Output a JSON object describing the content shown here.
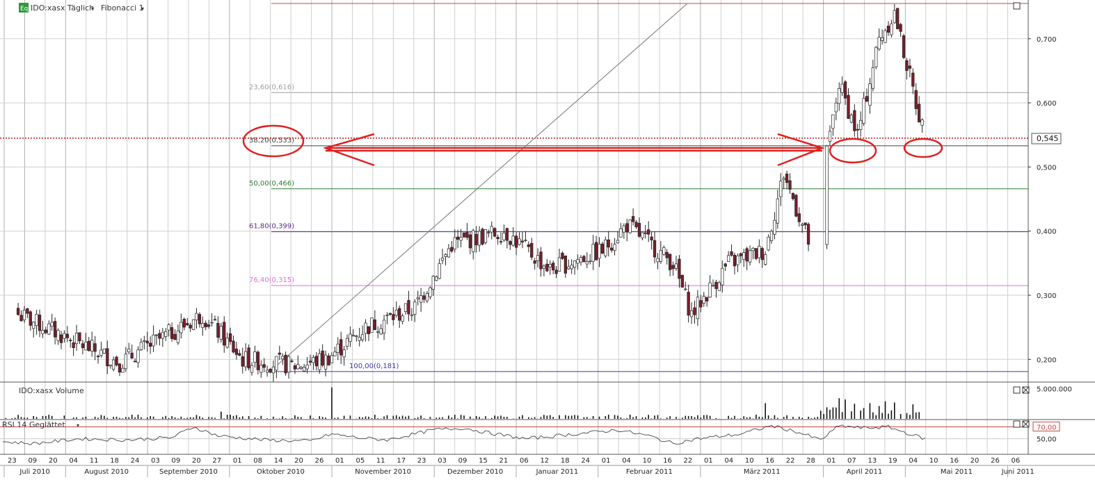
{
  "header": {
    "badge": "Eq",
    "symbol": "IDO:xasx Täglich",
    "fib_menu": "Fibonacci 1",
    "current_price": "0,545"
  },
  "colors": {
    "candle_up": "#ffffff",
    "candle_down": "#7a1f2b",
    "grid": "#cfcfcf",
    "fib_top": "#c84444",
    "fib_382": "#404040",
    "fib_50": "#2e7d32",
    "fib_618": "#5b2a86",
    "fib_764": "#e36be0",
    "fib_100": "#3a3aa0",
    "annotation": "#e02020"
  },
  "chart_data": [
    {
      "type": "candlestick",
      "title": "IDO:xasx Täglich",
      "ylim": [
        0.17,
        0.755
      ],
      "y_ticks": [
        "0,200",
        "0,300",
        "0,400",
        "0,500",
        "0,600",
        "0,700"
      ],
      "y_tick_values": [
        0.2,
        0.3,
        0.4,
        0.5,
        0.6,
        0.7
      ],
      "x_day_labels": [
        "23",
        "09",
        "20",
        "04",
        "11",
        "18",
        "24",
        "03",
        "09",
        "20",
        "27",
        "01",
        "08",
        "14",
        "20",
        "26",
        "01",
        "05",
        "11",
        "17",
        "23",
        "03",
        "09",
        "15",
        "21",
        "06",
        "12",
        "18",
        "24",
        "01",
        "04",
        "10",
        "16",
        "22",
        "01",
        "04",
        "10",
        "16",
        "22",
        "28",
        "01",
        "07",
        "13",
        "19",
        "04",
        "10",
        "16",
        "20",
        "26",
        "06"
      ],
      "x_month_labels": [
        "Juli 2010",
        "August 2010",
        "September 2010",
        "Oktober 2010",
        "November 2010",
        "Dezember 2010",
        "Januar 2011",
        "Februar 2011",
        "März 2011",
        "April 2011",
        "Mai 2011",
        "Juni 2011"
      ],
      "fibonacci": [
        {
          "label": "",
          "value": 0.755,
          "color": "#c84444"
        },
        {
          "label": "23,60(0,616)",
          "value": 0.616,
          "color": "#9e9e9e"
        },
        {
          "label": "38,20(0,533)",
          "value": 0.533,
          "color": "#404040"
        },
        {
          "label": "50,00(0,466)",
          "value": 0.466,
          "color": "#2e7d32"
        },
        {
          "label": "61,80(0,399)",
          "value": 0.399,
          "color": "#5b2a86"
        },
        {
          "label": "76,40(0,315)",
          "value": 0.315,
          "color": "#e36be0"
        },
        {
          "label": "100,00(0,181)",
          "value": 0.181,
          "color": "#3a3aa0"
        }
      ],
      "price_line": 0.545,
      "segments": [
        {
          "from": 5,
          "to": 38,
          "start": 0.27,
          "end": 0.195
        },
        {
          "from": 38,
          "to": 65,
          "start": 0.195,
          "end": 0.27
        },
        {
          "from": 65,
          "to": 78,
          "start": 0.27,
          "end": 0.2
        },
        {
          "from": 78,
          "to": 95,
          "start": 0.2,
          "end": 0.19
        },
        {
          "from": 95,
          "to": 105,
          "start": 0.19,
          "end": 0.2
        },
        {
          "from": 105,
          "to": 118,
          "start": 0.2,
          "end": 0.25
        },
        {
          "from": 118,
          "to": 134,
          "start": 0.25,
          "end": 0.28
        },
        {
          "from": 134,
          "to": 146,
          "start": 0.28,
          "end": 0.38
        },
        {
          "from": 146,
          "to": 163,
          "start": 0.38,
          "end": 0.4
        },
        {
          "from": 163,
          "to": 178,
          "start": 0.4,
          "end": 0.34
        },
        {
          "from": 178,
          "to": 195,
          "start": 0.34,
          "end": 0.37
        },
        {
          "from": 195,
          "to": 203,
          "start": 0.37,
          "end": 0.41
        },
        {
          "from": 203,
          "to": 218,
          "start": 0.41,
          "end": 0.35
        },
        {
          "from": 218,
          "to": 224,
          "start": 0.35,
          "end": 0.27
        },
        {
          "from": 224,
          "to": 236,
          "start": 0.27,
          "end": 0.35
        },
        {
          "from": 236,
          "to": 248,
          "start": 0.35,
          "end": 0.37
        },
        {
          "from": 248,
          "to": 254,
          "start": 0.37,
          "end": 0.49
        },
        {
          "from": 254,
          "to": 263,
          "start": 0.49,
          "end": 0.37
        },
        {
          "from": 268,
          "to": 272,
          "start": 0.52,
          "end": 0.63
        },
        {
          "from": 272,
          "to": 278,
          "start": 0.63,
          "end": 0.55
        },
        {
          "from": 278,
          "to": 285,
          "start": 0.55,
          "end": 0.7
        },
        {
          "from": 285,
          "to": 290,
          "start": 0.7,
          "end": 0.74
        },
        {
          "from": 290,
          "to": 297,
          "start": 0.74,
          "end": 0.6
        },
        {
          "from": 297,
          "to": 300,
          "start": 0.6,
          "end": 0.545
        }
      ]
    },
    {
      "type": "bar",
      "title": "IDO:xasx Volume",
      "y_ticks": [
        "5.000.000"
      ],
      "y_tick_values": [
        5000000
      ],
      "ylim": [
        0,
        5500000
      ],
      "spikes": [
        {
          "day": 107,
          "value": 5200000
        },
        {
          "day": 71,
          "value": 1200000
        },
        {
          "day": 248,
          "value": 2600000
        },
        {
          "day": 272,
          "value": 3400000
        },
        {
          "day": 274,
          "value": 3200000
        },
        {
          "day": 277,
          "value": 2500000
        },
        {
          "day": 282,
          "value": 2600000
        },
        {
          "day": 287,
          "value": 2900000
        },
        {
          "day": 290,
          "value": 2700000
        },
        {
          "day": 296,
          "value": 2400000
        }
      ]
    },
    {
      "type": "line",
      "title": "RSI 14 Geglättet",
      "y_ticks": [
        "50,00",
        "70,00"
      ],
      "y_tick_values": [
        50,
        70
      ],
      "ylim": [
        25,
        80
      ],
      "knots": [
        [
          0,
          45
        ],
        [
          10,
          42
        ],
        [
          25,
          50
        ],
        [
          40,
          48
        ],
        [
          55,
          52
        ],
        [
          62,
          70
        ],
        [
          70,
          55
        ],
        [
          85,
          48
        ],
        [
          100,
          46
        ],
        [
          107,
          58
        ],
        [
          115,
          52
        ],
        [
          125,
          48
        ],
        [
          140,
          65
        ],
        [
          150,
          68
        ],
        [
          158,
          60
        ],
        [
          170,
          50
        ],
        [
          180,
          55
        ],
        [
          190,
          60
        ],
        [
          200,
          65
        ],
        [
          210,
          55
        ],
        [
          218,
          42
        ],
        [
          226,
          50
        ],
        [
          240,
          58
        ],
        [
          250,
          72
        ],
        [
          258,
          62
        ],
        [
          266,
          48
        ],
        [
          272,
          72
        ],
        [
          280,
          68
        ],
        [
          288,
          70
        ],
        [
          295,
          58
        ],
        [
          300,
          50
        ]
      ]
    }
  ]
}
